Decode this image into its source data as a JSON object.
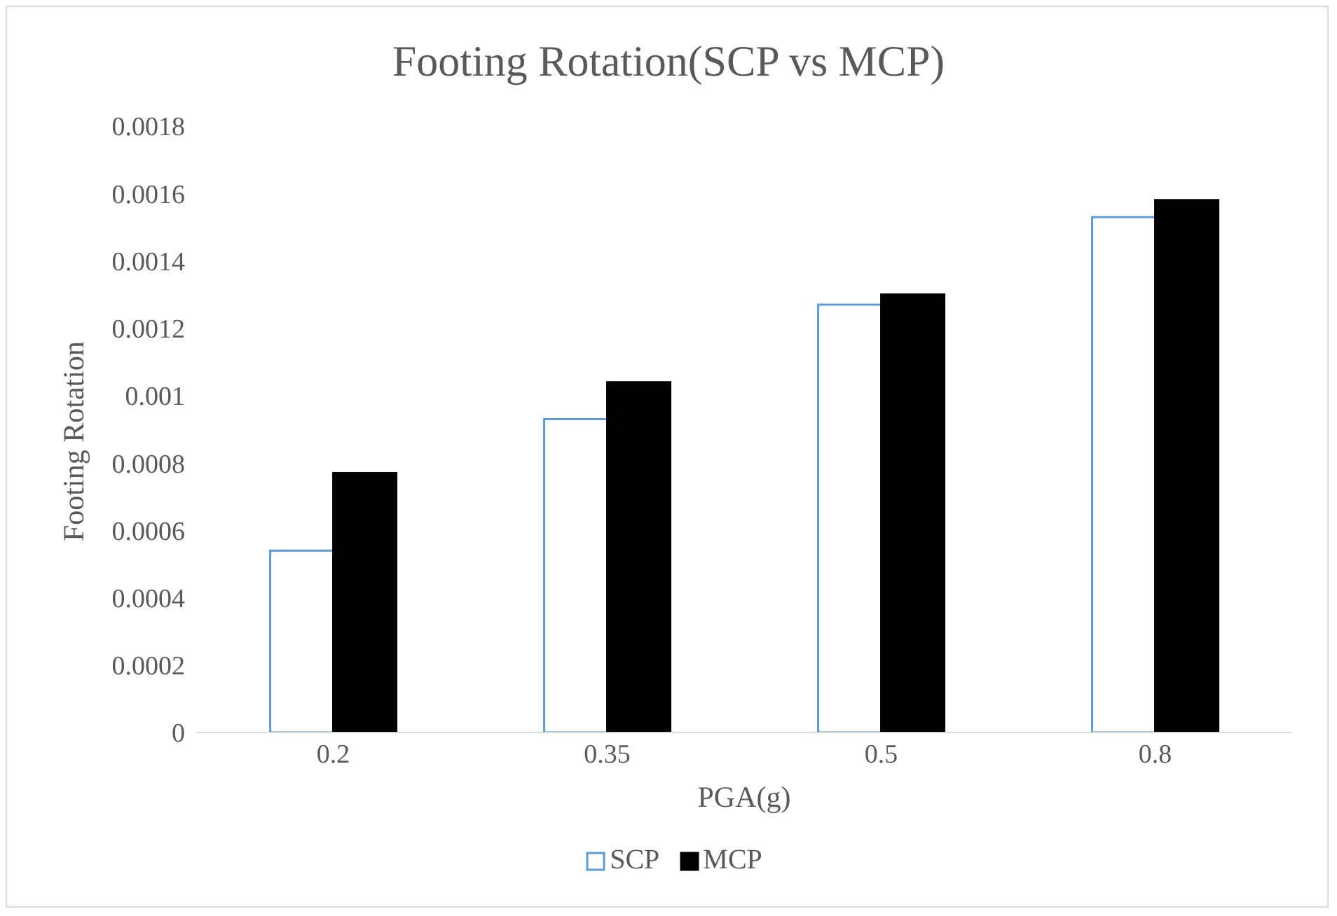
{
  "chart_data": {
    "type": "bar",
    "title": "Footing Rotation(SCP vs MCP)",
    "xlabel": "PGA(g)",
    "ylabel": "Footing Rotation",
    "categories": [
      "0.2",
      "0.35",
      "0.5",
      "0.8"
    ],
    "series": [
      {
        "name": "SCP",
        "color": "#5b9bd5",
        "values": [
          0.00054,
          0.00093,
          0.00127,
          0.00153
        ]
      },
      {
        "name": "MCP",
        "color": "#000000",
        "values": [
          0.00077,
          0.00104,
          0.0013,
          0.00158
        ]
      }
    ],
    "ylim": [
      0,
      0.0018
    ],
    "yticks": [
      0,
      0.0002,
      0.0004,
      0.0006,
      0.0008,
      0.001,
      0.0012,
      0.0014,
      0.0016,
      0.0018
    ],
    "grid": false,
    "legend": "bottom"
  }
}
